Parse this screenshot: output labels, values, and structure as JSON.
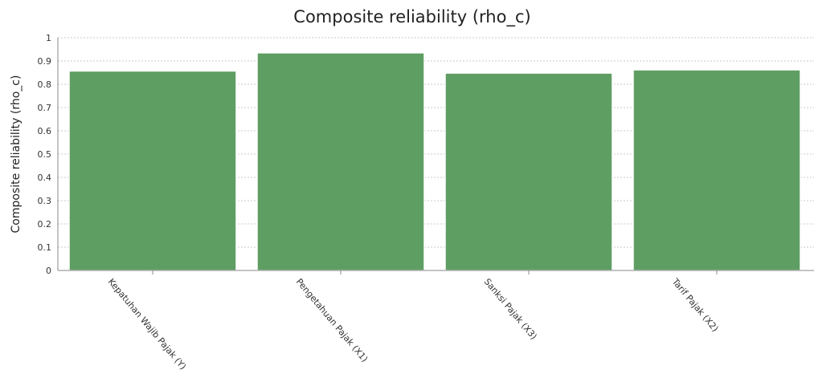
{
  "chart_data": {
    "type": "bar",
    "title": "Composite reliability (rho_c)",
    "xlabel": "",
    "ylabel": "Composite reliability (rho_c)",
    "categories": [
      "Kepatuhan Wajib Pajak (Y)",
      "Pengetahuan Pajak (X1)",
      "Sanksi Pajak (X3)",
      "Tarif Pajak (X2)"
    ],
    "values": [
      0.857,
      0.935,
      0.848,
      0.862
    ],
    "ylim": [
      0,
      1
    ],
    "yticks": [
      "0",
      "0.1",
      "0.2",
      "0.3",
      "0.4",
      "0.5",
      "0.6",
      "0.7",
      "0.8",
      "0.9",
      "1"
    ],
    "grid": true,
    "bar_color": "#5f9e62"
  }
}
